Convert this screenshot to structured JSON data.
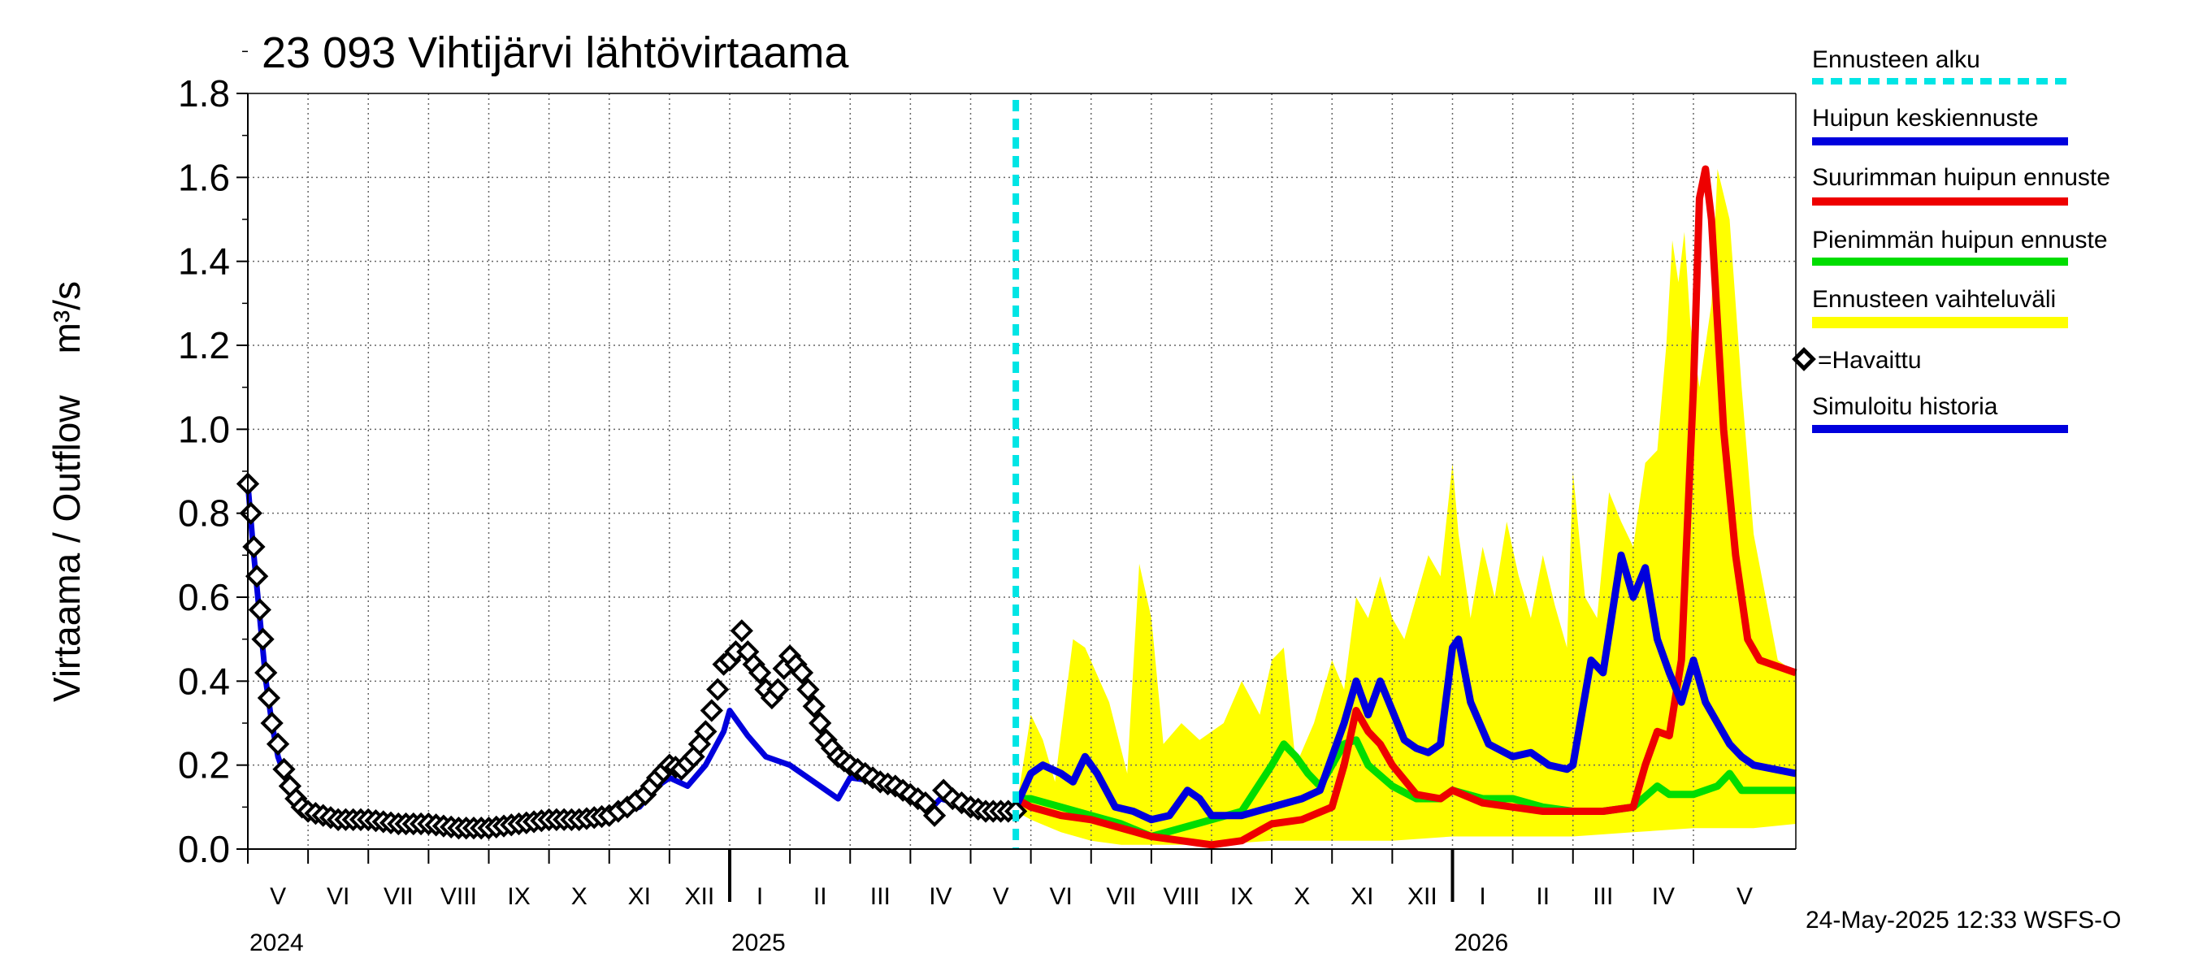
{
  "chart_data": {
    "type": "line",
    "title": "23 093 Vihtijärvi lähtövirtaama",
    "ylabel": "Virtaama / Outflow    m³/s",
    "ylim": [
      0,
      1.8
    ],
    "yticks": [
      "0.0",
      "0.2",
      "0.4",
      "0.6",
      "0.8",
      "1.0",
      "1.2",
      "1.4",
      "1.6",
      "1.8"
    ],
    "x_unit": "months since 2024-05-01",
    "xlim": [
      0,
      25.7
    ],
    "forecast_start": 12.75,
    "months": [
      {
        "label": "V",
        "x": 0
      },
      {
        "label": "VI",
        "x": 1
      },
      {
        "label": "VII",
        "x": 2
      },
      {
        "label": "VIII",
        "x": 3
      },
      {
        "label": "IX",
        "x": 4
      },
      {
        "label": "X",
        "x": 5
      },
      {
        "label": "XI",
        "x": 6
      },
      {
        "label": "XII",
        "x": 7
      },
      {
        "label": "I",
        "x": 8
      },
      {
        "label": "II",
        "x": 9
      },
      {
        "label": "III",
        "x": 10
      },
      {
        "label": "IV",
        "x": 11
      },
      {
        "label": "V",
        "x": 12
      },
      {
        "label": "VI",
        "x": 13
      },
      {
        "label": "VII",
        "x": 14
      },
      {
        "label": "VIII",
        "x": 15
      },
      {
        "label": "IX",
        "x": 16
      },
      {
        "label": "X",
        "x": 17
      },
      {
        "label": "XI",
        "x": 18
      },
      {
        "label": "XII",
        "x": 19
      },
      {
        "label": "I",
        "x": 20
      },
      {
        "label": "II",
        "x": 21
      },
      {
        "label": "III",
        "x": 22
      },
      {
        "label": "IV",
        "x": 23
      },
      {
        "label": "V",
        "x": 24
      }
    ],
    "years": [
      {
        "label": "2024",
        "x": 0
      },
      {
        "label": "2025",
        "x": 8
      },
      {
        "label": "2026",
        "x": 20
      }
    ],
    "legend": {
      "forecast_start": "Ennusteen alku",
      "mean_peak": "Huipun keskiennuste",
      "max_peak": "Suurimman huipun ennuste",
      "min_peak": "Pienimmän huipun ennuste",
      "range": "Ennusteen vaihteluväli",
      "observed": "=Havaittu",
      "simulated": "Simuloitu historia"
    },
    "colors": {
      "forecast_start": "#00e5e5",
      "mean_peak": "#0000dd",
      "max_peak": "#ee0000",
      "min_peak": "#00dd00",
      "range": "#ffff00",
      "observed": "#000000",
      "simulated": "#0000dd"
    },
    "series": {
      "simulated": [
        [
          0,
          0.87
        ],
        [
          0.1,
          0.7
        ],
        [
          0.2,
          0.55
        ],
        [
          0.3,
          0.4
        ],
        [
          0.4,
          0.3
        ],
        [
          0.5,
          0.22
        ],
        [
          0.7,
          0.14
        ],
        [
          1,
          0.09
        ],
        [
          1.5,
          0.07
        ],
        [
          2,
          0.06
        ],
        [
          3,
          0.05
        ],
        [
          4,
          0.05
        ],
        [
          5,
          0.06
        ],
        [
          6,
          0.08
        ],
        [
          6.5,
          0.1
        ],
        [
          6.8,
          0.15
        ],
        [
          7,
          0.17
        ],
        [
          7.3,
          0.15
        ],
        [
          7.6,
          0.2
        ],
        [
          7.9,
          0.28
        ],
        [
          8.0,
          0.33
        ],
        [
          8.3,
          0.27
        ],
        [
          8.6,
          0.22
        ],
        [
          9,
          0.2
        ],
        [
          9.5,
          0.15
        ],
        [
          9.8,
          0.12
        ],
        [
          10,
          0.17
        ],
        [
          10.5,
          0.16
        ],
        [
          11,
          0.12
        ],
        [
          11.3,
          0.09
        ],
        [
          11.5,
          0.12
        ],
        [
          12,
          0.1
        ],
        [
          12.75,
          0.09
        ]
      ],
      "observed": [
        [
          0,
          0.87
        ],
        [
          0.05,
          0.8
        ],
        [
          0.1,
          0.72
        ],
        [
          0.15,
          0.65
        ],
        [
          0.2,
          0.57
        ],
        [
          0.25,
          0.5
        ],
        [
          0.3,
          0.42
        ],
        [
          0.35,
          0.36
        ],
        [
          0.4,
          0.3
        ],
        [
          0.5,
          0.25
        ],
        [
          0.6,
          0.19
        ],
        [
          0.7,
          0.15
        ],
        [
          0.8,
          0.12
        ],
        [
          0.9,
          0.1
        ],
        [
          1,
          0.09
        ],
        [
          1.25,
          0.08
        ],
        [
          1.5,
          0.07
        ],
        [
          2,
          0.07
        ],
        [
          2.5,
          0.06
        ],
        [
          3,
          0.06
        ],
        [
          3.5,
          0.05
        ],
        [
          4,
          0.05
        ],
        [
          4.5,
          0.06
        ],
        [
          5,
          0.07
        ],
        [
          5.5,
          0.07
        ],
        [
          6,
          0.08
        ],
        [
          6.3,
          0.1
        ],
        [
          6.6,
          0.13
        ],
        [
          6.8,
          0.17
        ],
        [
          7,
          0.2
        ],
        [
          7.2,
          0.19
        ],
        [
          7.4,
          0.22
        ],
        [
          7.6,
          0.28
        ],
        [
          7.8,
          0.38
        ],
        [
          7.9,
          0.44
        ],
        [
          8,
          0.45
        ],
        [
          8.1,
          0.47
        ],
        [
          8.2,
          0.52
        ],
        [
          8.3,
          0.47
        ],
        [
          8.4,
          0.44
        ],
        [
          8.5,
          0.42
        ],
        [
          8.6,
          0.38
        ],
        [
          8.7,
          0.36
        ],
        [
          8.8,
          0.38
        ],
        [
          8.9,
          0.43
        ],
        [
          9,
          0.46
        ],
        [
          9.1,
          0.44
        ],
        [
          9.2,
          0.42
        ],
        [
          9.3,
          0.38
        ],
        [
          9.4,
          0.34
        ],
        [
          9.5,
          0.3
        ],
        [
          9.6,
          0.26
        ],
        [
          9.7,
          0.24
        ],
        [
          9.8,
          0.22
        ],
        [
          10,
          0.2
        ],
        [
          10.25,
          0.18
        ],
        [
          10.5,
          0.16
        ],
        [
          10.75,
          0.15
        ],
        [
          11,
          0.13
        ],
        [
          11.25,
          0.11
        ],
        [
          11.4,
          0.08
        ],
        [
          11.55,
          0.14
        ],
        [
          11.7,
          0.12
        ],
        [
          12,
          0.1
        ],
        [
          12.25,
          0.09
        ],
        [
          12.5,
          0.09
        ],
        [
          12.75,
          0.09
        ]
      ],
      "range_upper": [
        [
          12.75,
          0.09
        ],
        [
          13,
          0.32
        ],
        [
          13.2,
          0.26
        ],
        [
          13.4,
          0.16
        ],
        [
          13.7,
          0.5
        ],
        [
          13.9,
          0.48
        ],
        [
          14.3,
          0.35
        ],
        [
          14.6,
          0.18
        ],
        [
          14.8,
          0.68
        ],
        [
          15,
          0.55
        ],
        [
          15.2,
          0.25
        ],
        [
          15.5,
          0.3
        ],
        [
          15.8,
          0.26
        ],
        [
          16.2,
          0.3
        ],
        [
          16.5,
          0.4
        ],
        [
          16.8,
          0.32
        ],
        [
          17,
          0.45
        ],
        [
          17.2,
          0.48
        ],
        [
          17.4,
          0.2
        ],
        [
          17.7,
          0.3
        ],
        [
          18,
          0.45
        ],
        [
          18.2,
          0.38
        ],
        [
          18.4,
          0.6
        ],
        [
          18.6,
          0.55
        ],
        [
          18.8,
          0.65
        ],
        [
          19,
          0.55
        ],
        [
          19.2,
          0.5
        ],
        [
          19.4,
          0.6
        ],
        [
          19.6,
          0.7
        ],
        [
          19.8,
          0.65
        ],
        [
          20,
          0.92
        ],
        [
          20.1,
          0.75
        ],
        [
          20.3,
          0.55
        ],
        [
          20.5,
          0.72
        ],
        [
          20.7,
          0.6
        ],
        [
          20.9,
          0.78
        ],
        [
          21.1,
          0.65
        ],
        [
          21.3,
          0.55
        ],
        [
          21.5,
          0.7
        ],
        [
          21.7,
          0.58
        ],
        [
          21.9,
          0.48
        ],
        [
          22,
          0.9
        ],
        [
          22.2,
          0.6
        ],
        [
          22.4,
          0.55
        ],
        [
          22.6,
          0.85
        ],
        [
          22.8,
          0.78
        ],
        [
          23,
          0.72
        ],
        [
          23.2,
          0.92
        ],
        [
          23.4,
          0.95
        ],
        [
          23.55,
          1.2
        ],
        [
          23.65,
          1.45
        ],
        [
          23.75,
          1.35
        ],
        [
          23.85,
          1.47
        ],
        [
          23.95,
          1.25
        ],
        [
          24.1,
          1.1
        ],
        [
          24.3,
          1.3
        ],
        [
          24.4,
          1.62
        ],
        [
          24.6,
          1.5
        ],
        [
          24.8,
          1.1
        ],
        [
          25,
          0.75
        ],
        [
          25.2,
          0.6
        ],
        [
          25.4,
          0.45
        ],
        [
          25.7,
          0.42
        ]
      ],
      "range_lower": [
        [
          12.75,
          0.09
        ],
        [
          13,
          0.07
        ],
        [
          13.5,
          0.04
        ],
        [
          14,
          0.02
        ],
        [
          14.5,
          0.01
        ],
        [
          15,
          0.01
        ],
        [
          16,
          0.01
        ],
        [
          17,
          0.02
        ],
        [
          18,
          0.02
        ],
        [
          19,
          0.02
        ],
        [
          20,
          0.03
        ],
        [
          21,
          0.03
        ],
        [
          22,
          0.03
        ],
        [
          23,
          0.04
        ],
        [
          24,
          0.05
        ],
        [
          25,
          0.05
        ],
        [
          25.7,
          0.06
        ]
      ],
      "mean_peak": [
        [
          12.75,
          0.1
        ],
        [
          13,
          0.18
        ],
        [
          13.2,
          0.2
        ],
        [
          13.5,
          0.18
        ],
        [
          13.7,
          0.16
        ],
        [
          13.9,
          0.22
        ],
        [
          14.1,
          0.18
        ],
        [
          14.4,
          0.1
        ],
        [
          14.7,
          0.09
        ],
        [
          15,
          0.07
        ],
        [
          15.3,
          0.08
        ],
        [
          15.6,
          0.14
        ],
        [
          15.8,
          0.12
        ],
        [
          16,
          0.08
        ],
        [
          16.5,
          0.08
        ],
        [
          17,
          0.1
        ],
        [
          17.5,
          0.12
        ],
        [
          17.8,
          0.14
        ],
        [
          18,
          0.22
        ],
        [
          18.2,
          0.3
        ],
        [
          18.4,
          0.4
        ],
        [
          18.6,
          0.32
        ],
        [
          18.8,
          0.4
        ],
        [
          19,
          0.33
        ],
        [
          19.2,
          0.26
        ],
        [
          19.4,
          0.24
        ],
        [
          19.6,
          0.23
        ],
        [
          19.8,
          0.25
        ],
        [
          20,
          0.48
        ],
        [
          20.1,
          0.5
        ],
        [
          20.3,
          0.35
        ],
        [
          20.6,
          0.25
        ],
        [
          21,
          0.22
        ],
        [
          21.3,
          0.23
        ],
        [
          21.6,
          0.2
        ],
        [
          21.9,
          0.19
        ],
        [
          22,
          0.2
        ],
        [
          22.3,
          0.45
        ],
        [
          22.5,
          0.42
        ],
        [
          22.8,
          0.7
        ],
        [
          23,
          0.6
        ],
        [
          23.2,
          0.67
        ],
        [
          23.4,
          0.5
        ],
        [
          23.6,
          0.42
        ],
        [
          23.8,
          0.35
        ],
        [
          24,
          0.45
        ],
        [
          24.2,
          0.35
        ],
        [
          24.4,
          0.3
        ],
        [
          24.6,
          0.25
        ],
        [
          24.8,
          0.22
        ],
        [
          25,
          0.2
        ],
        [
          25.7,
          0.18
        ]
      ],
      "max_peak": [
        [
          12.75,
          0.12
        ],
        [
          13,
          0.1
        ],
        [
          13.5,
          0.08
        ],
        [
          14,
          0.07
        ],
        [
          14.5,
          0.05
        ],
        [
          15,
          0.03
        ],
        [
          15.5,
          0.02
        ],
        [
          16,
          0.01
        ],
        [
          16.5,
          0.02
        ],
        [
          17,
          0.06
        ],
        [
          17.5,
          0.07
        ],
        [
          18,
          0.1
        ],
        [
          18.2,
          0.2
        ],
        [
          18.4,
          0.33
        ],
        [
          18.6,
          0.28
        ],
        [
          18.8,
          0.25
        ],
        [
          19,
          0.2
        ],
        [
          19.4,
          0.13
        ],
        [
          19.8,
          0.12
        ],
        [
          20,
          0.14
        ],
        [
          20.5,
          0.11
        ],
        [
          21,
          0.1
        ],
        [
          21.5,
          0.09
        ],
        [
          22,
          0.09
        ],
        [
          22.5,
          0.09
        ],
        [
          23,
          0.1
        ],
        [
          23.2,
          0.2
        ],
        [
          23.4,
          0.28
        ],
        [
          23.6,
          0.27
        ],
        [
          23.8,
          0.45
        ],
        [
          24,
          1.1
        ],
        [
          24.1,
          1.55
        ],
        [
          24.2,
          1.62
        ],
        [
          24.3,
          1.5
        ],
        [
          24.5,
          1.0
        ],
        [
          24.7,
          0.7
        ],
        [
          24.9,
          0.5
        ],
        [
          25.1,
          0.45
        ],
        [
          25.7,
          0.42
        ]
      ],
      "min_peak": [
        [
          12.75,
          0.12
        ],
        [
          13,
          0.12
        ],
        [
          13.5,
          0.1
        ],
        [
          14,
          0.08
        ],
        [
          14.5,
          0.06
        ],
        [
          15,
          0.03
        ],
        [
          15.5,
          0.05
        ],
        [
          16,
          0.07
        ],
        [
          16.5,
          0.09
        ],
        [
          17,
          0.2
        ],
        [
          17.2,
          0.25
        ],
        [
          17.4,
          0.22
        ],
        [
          17.6,
          0.18
        ],
        [
          17.8,
          0.15
        ],
        [
          18,
          0.2
        ],
        [
          18.2,
          0.25
        ],
        [
          18.4,
          0.26
        ],
        [
          18.6,
          0.2
        ],
        [
          19,
          0.15
        ],
        [
          19.4,
          0.12
        ],
        [
          19.8,
          0.12
        ],
        [
          20,
          0.14
        ],
        [
          20.5,
          0.12
        ],
        [
          21,
          0.12
        ],
        [
          21.5,
          0.1
        ],
        [
          22,
          0.09
        ],
        [
          22.5,
          0.09
        ],
        [
          23,
          0.1
        ],
        [
          23.4,
          0.15
        ],
        [
          23.6,
          0.13
        ],
        [
          24,
          0.13
        ],
        [
          24.4,
          0.15
        ],
        [
          24.6,
          0.18
        ],
        [
          24.8,
          0.14
        ],
        [
          25.7,
          0.14
        ]
      ]
    }
  },
  "footer": {
    "timestamp": "24-May-2025 12:33 WSFS-O"
  }
}
